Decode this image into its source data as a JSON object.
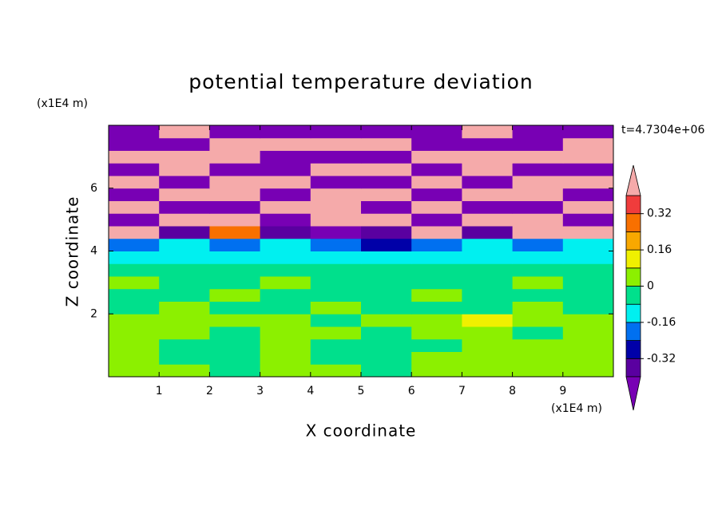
{
  "chart_data": {
    "type": "contour",
    "title": "potential temperature deviation",
    "x_label": "X coordinate",
    "y_label": "Z coordinate",
    "x_unit": "(x1E4 m)",
    "y_unit": "(x1E4 m)",
    "annotation": "t=4.7304e+06",
    "xlim": [
      0,
      10
    ],
    "ylim": [
      0,
      8
    ],
    "xticks": [
      1,
      2,
      3,
      4,
      5,
      6,
      7,
      8,
      9
    ],
    "yticks": [
      2,
      4,
      6
    ],
    "x": [
      0.5,
      1.5,
      2.5,
      3.5,
      4.5,
      5.5,
      6.5,
      7.5,
      8.5,
      9.5
    ],
    "y": [
      0.2,
      0.6,
      1.0,
      1.4,
      1.8,
      2.2,
      2.6,
      3.0,
      3.4,
      3.8,
      4.2,
      4.6,
      5.0,
      5.4,
      5.8,
      6.2,
      6.6,
      7.0,
      7.4,
      7.8
    ],
    "z": [
      [
        0.04,
        0.04,
        -0.04,
        0.04,
        0.04,
        -0.04,
        0.04,
        0.04,
        0.04,
        0.04
      ],
      [
        0.04,
        -0.04,
        -0.04,
        0.04,
        -0.04,
        -0.04,
        0.04,
        0.04,
        0.04,
        0.04
      ],
      [
        0.04,
        -0.04,
        -0.04,
        0.04,
        -0.04,
        -0.04,
        -0.04,
        0.04,
        0.04,
        0.04
      ],
      [
        0.04,
        0.04,
        -0.04,
        0.04,
        0.04,
        -0.04,
        0.04,
        0.04,
        -0.04,
        0.04
      ],
      [
        0.04,
        0.04,
        0.04,
        0.04,
        -0.04,
        0.04,
        0.04,
        0.12,
        0.04,
        0.04
      ],
      [
        -0.04,
        0.04,
        -0.04,
        -0.04,
        0.04,
        -0.04,
        -0.04,
        -0.04,
        0.04,
        -0.04
      ],
      [
        -0.04,
        -0.04,
        0.04,
        -0.04,
        -0.04,
        -0.04,
        0.04,
        -0.04,
        -0.04,
        -0.04
      ],
      [
        0.04,
        -0.04,
        -0.04,
        0.04,
        -0.04,
        -0.04,
        -0.04,
        -0.04,
        0.04,
        -0.04
      ],
      [
        -0.04,
        -0.04,
        -0.04,
        -0.04,
        -0.04,
        -0.04,
        -0.04,
        -0.04,
        -0.04,
        -0.04
      ],
      [
        -0.12,
        -0.12,
        -0.12,
        -0.12,
        -0.12,
        -0.12,
        -0.12,
        -0.12,
        -0.12,
        -0.12
      ],
      [
        -0.2,
        -0.12,
        -0.2,
        -0.12,
        -0.2,
        -0.28,
        -0.2,
        -0.12,
        -0.2,
        -0.12
      ],
      [
        0.5,
        -0.36,
        0.28,
        -0.36,
        -0.5,
        -0.36,
        0.5,
        -0.36,
        0.5,
        0.5
      ],
      [
        -0.5,
        0.5,
        0.5,
        -0.5,
        0.5,
        0.5,
        -0.5,
        0.5,
        0.5,
        -0.5
      ],
      [
        0.5,
        -0.5,
        -0.5,
        0.5,
        0.5,
        -0.5,
        0.5,
        -0.5,
        -0.5,
        0.5
      ],
      [
        -0.5,
        0.5,
        0.5,
        -0.5,
        0.5,
        0.5,
        -0.5,
        0.5,
        0.5,
        -0.5
      ],
      [
        0.5,
        -0.5,
        0.5,
        0.5,
        -0.5,
        -0.5,
        0.5,
        -0.5,
        0.5,
        0.5
      ],
      [
        -0.5,
        0.5,
        -0.5,
        -0.5,
        0.5,
        0.5,
        -0.5,
        0.5,
        -0.5,
        -0.5
      ],
      [
        0.5,
        0.5,
        0.5,
        -0.5,
        -0.5,
        -0.5,
        0.5,
        0.5,
        0.5,
        0.5
      ],
      [
        -0.5,
        -0.5,
        0.5,
        0.5,
        0.5,
        0.5,
        -0.5,
        -0.5,
        -0.5,
        0.5
      ],
      [
        -0.5,
        0.5,
        -0.5,
        -0.5,
        -0.5,
        -0.5,
        -0.5,
        0.5,
        -0.5,
        -0.5
      ]
    ],
    "colorbar": {
      "levels": [
        -0.4,
        -0.32,
        -0.24,
        -0.16,
        -0.08,
        0,
        0.08,
        0.16,
        0.24,
        0.32,
        0.4
      ],
      "colors": [
        "#7800b4",
        "#5a00a0",
        "#0000a8",
        "#0070f0",
        "#00f0f0",
        "#00e08c",
        "#8cf000",
        "#f0f000",
        "#f8a800",
        "#f87000",
        "#f03c3c",
        "#f5aaaa"
      ],
      "ticks": [
        0.32,
        0.16,
        0,
        -0.16,
        -0.32
      ]
    }
  }
}
